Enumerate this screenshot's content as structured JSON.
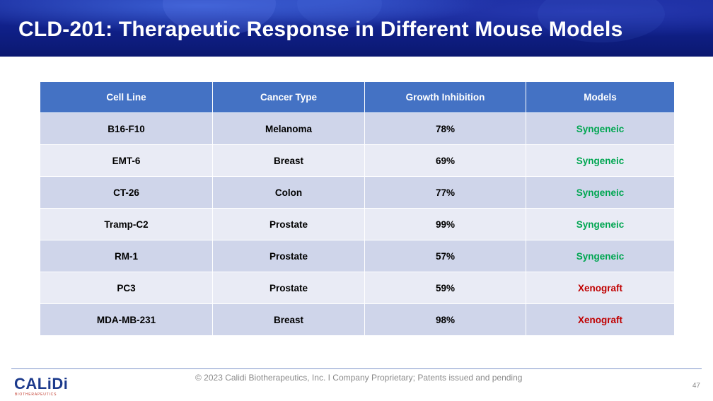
{
  "slide": {
    "title": "CLD-201: Therapeutic Response in Different Mouse Models",
    "page_number": "47"
  },
  "table": {
    "headers": [
      "Cell Line",
      "Cancer Type",
      "Growth Inhibition",
      "Models"
    ],
    "rows": [
      [
        "B16-F10",
        "Melanoma",
        "78%",
        "Syngeneic"
      ],
      [
        "EMT-6",
        "Breast",
        "69%",
        "Syngeneic"
      ],
      [
        "CT-26",
        "Colon",
        "77%",
        "Syngeneic"
      ],
      [
        "Tramp-C2",
        "Prostate",
        "99%",
        "Syngeneic"
      ],
      [
        "RM-1",
        "Prostate",
        "57%",
        "Syngeneic"
      ],
      [
        "PC3",
        "Prostate",
        "59%",
        "Xenograft"
      ],
      [
        "MDA-MB-231",
        "Breast",
        "98%",
        "Xenograft"
      ]
    ]
  },
  "colors": {
    "Syngeneic": "#00a651",
    "Xenograft": "#c00000"
  },
  "footer": {
    "logo_text": "CALiDi",
    "logo_subtext": "BIOTHERAPEUTICS",
    "copyright": "© 2023 Calidi Biotherapeutics, Inc. I  Company Proprietary; Patents issued and pending"
  }
}
